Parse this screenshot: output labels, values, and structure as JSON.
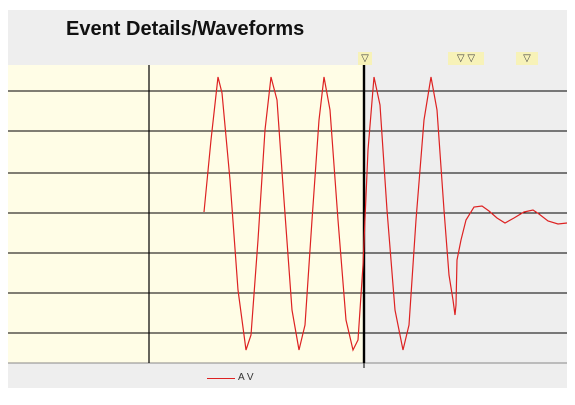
{
  "panel": {
    "title": "Event Details/Waveforms"
  },
  "markers": [
    {
      "symbol": "▽"
    },
    {
      "symbol": "▽ ▽"
    },
    {
      "symbol": "▽"
    }
  ],
  "legend": {
    "series_name": "A V"
  },
  "colors": {
    "pre_trigger_bg": "#fffde6",
    "post_trigger_bg": "#eeeeee",
    "grid": "#000000",
    "waveform": "#dd2222",
    "marker_bg": "#f7f2b8"
  },
  "chart_data": {
    "type": "line",
    "title": "Event Details/Waveforms",
    "xlabel": "",
    "ylabel": "",
    "grid": true,
    "legend": "bottom",
    "series": [
      {
        "name": "A V",
        "color": "#dd2222"
      }
    ]
  }
}
